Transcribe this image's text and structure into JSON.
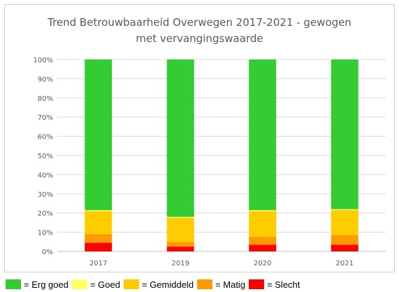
{
  "chart_data": {
    "type": "bar",
    "stacked": true,
    "title_lines": [
      "Trend Betrouwbaarheid Overwegen 2017-2021 - gewogen",
      "met vervangingswaarde"
    ],
    "categories": [
      "2017",
      "2019",
      "2020",
      "2021"
    ],
    "series": [
      {
        "name": "= Slecht",
        "color": "#ff0000",
        "values": [
          4.5,
          2.5,
          3.5,
          3.5
        ]
      },
      {
        "name": "= Matig",
        "color": "#ff9900",
        "values": [
          4.5,
          2.5,
          4.0,
          5.0
        ]
      },
      {
        "name": "= Gemiddeld",
        "color": "#ffcc00",
        "values": [
          12.0,
          12.5,
          13.5,
          13.0
        ]
      },
      {
        "name": "= Goed",
        "color": "#ffff66",
        "values": [
          0.5,
          0.5,
          0.5,
          0.5
        ]
      },
      {
        "name": "= Erg goed",
        "color": "#33cc33",
        "values": [
          78.5,
          82.0,
          78.5,
          78.0
        ]
      }
    ],
    "legend_order": [
      "= Erg goed",
      "= Goed",
      "= Gemiddeld",
      "= Matig",
      "= Slecht"
    ],
    "y_ticks": [
      "0%",
      "10%",
      "20%",
      "30%",
      "40%",
      "50%",
      "60%",
      "70%",
      "80%",
      "90%",
      "100%"
    ],
    "ylim": [
      0,
      100
    ],
    "grid": true,
    "legend_position": "bottom"
  }
}
